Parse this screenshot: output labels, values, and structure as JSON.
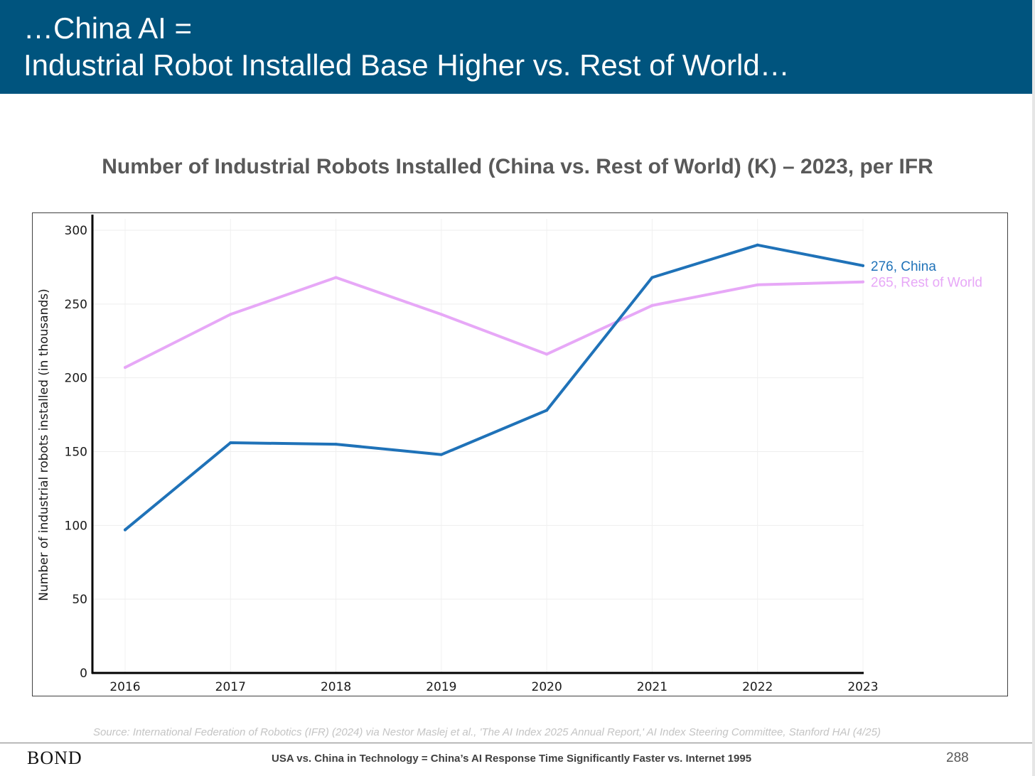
{
  "header": {
    "line1": "…China AI =",
    "line2": "Industrial Robot Installed Base Higher vs. Rest of World…"
  },
  "chart_data": {
    "type": "line",
    "title": "Number of Industrial Robots Installed (China vs. Rest of World) (K) – 2023, per IFR",
    "xlabel": "",
    "ylabel": "Number of industrial robots installed (in thousands)",
    "x": [
      "2016",
      "2017",
      "2018",
      "2019",
      "2020",
      "2021",
      "2022",
      "2023"
    ],
    "ylim": [
      0,
      300
    ],
    "yticks": [
      0,
      50,
      100,
      150,
      200,
      250,
      300
    ],
    "grid": true,
    "series": [
      {
        "name": "China",
        "color": "#1f72b8",
        "values": [
          97,
          156,
          155,
          148,
          178,
          268,
          290,
          276
        ],
        "end_label": "276, China"
      },
      {
        "name": "Rest of World",
        "color": "#e7a8f7",
        "values": [
          207,
          243,
          268,
          243,
          216,
          249,
          263,
          265
        ],
        "end_label": "265, Rest of World"
      }
    ]
  },
  "source": "Source: International Federation of Robotics (IFR) (2024) via Nestor Maslej et al., 'The AI Index 2025 Annual Report,' AI Index Steering Committee, Stanford HAI (4/25)",
  "footer": {
    "logo": "BOND",
    "text": "USA vs. China in Technology = China’s AI Response Time Significantly Faster vs. Internet 1995",
    "page": "288"
  }
}
